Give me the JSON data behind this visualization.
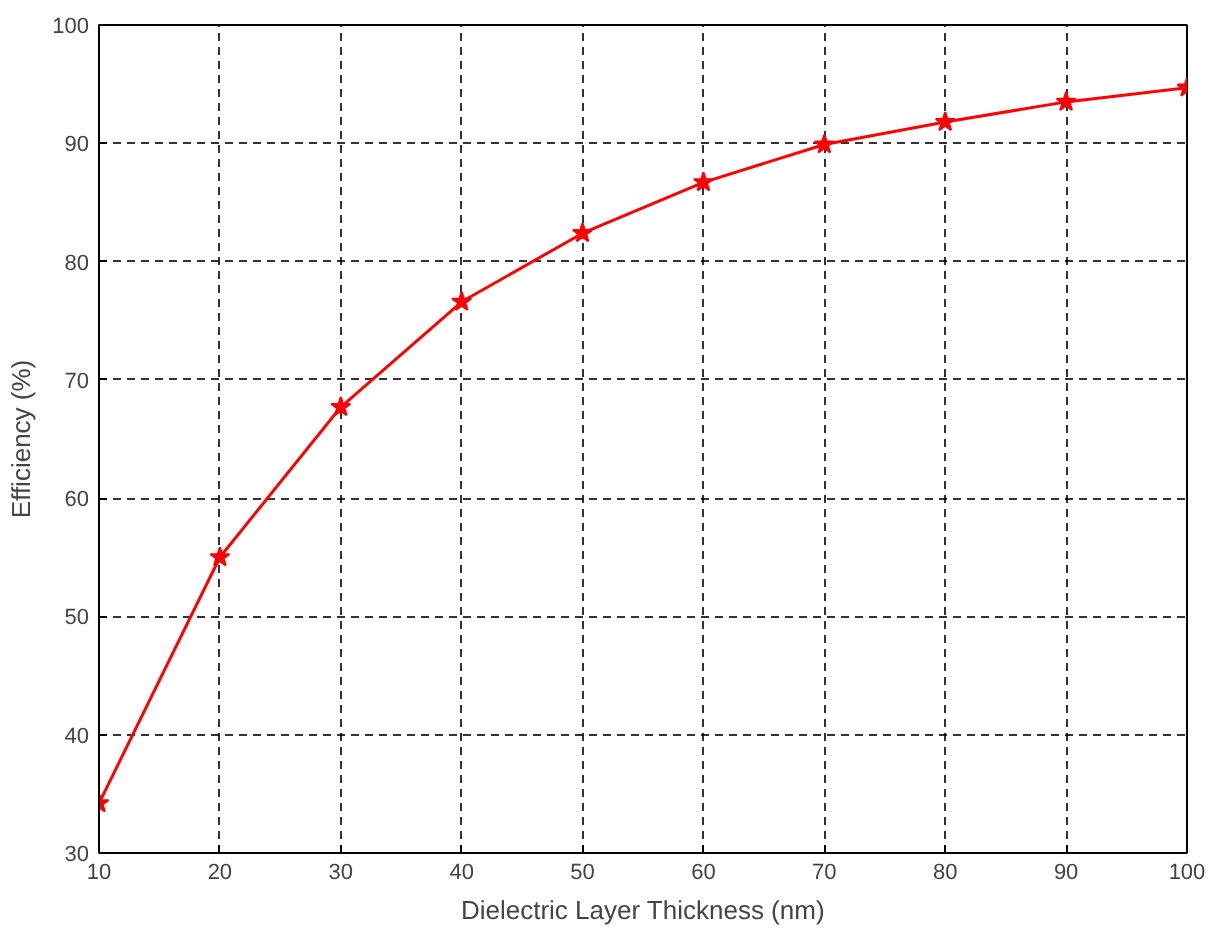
{
  "chart_data": {
    "type": "line",
    "xlabel": "Dielectric Layer Thickness (nm)",
    "ylabel": "Efficiency (%)",
    "x": [
      10,
      20,
      30,
      40,
      50,
      60,
      70,
      80,
      90,
      100
    ],
    "series": [
      {
        "color": "#ff0000",
        "values": [
          34.2,
          55,
          67.7,
          76.6,
          82.4,
          86.7,
          89.9,
          91.8,
          93.5,
          94.7
        ]
      }
    ],
    "xlim": [
      10,
      100
    ],
    "ylim": [
      30,
      100
    ],
    "xticks": [
      10,
      20,
      30,
      40,
      50,
      60,
      70,
      80,
      90,
      100
    ],
    "yticks": [
      30,
      40,
      50,
      60,
      70,
      80,
      90,
      100
    ],
    "grid": true,
    "marker": "star",
    "line_style": "solid"
  }
}
